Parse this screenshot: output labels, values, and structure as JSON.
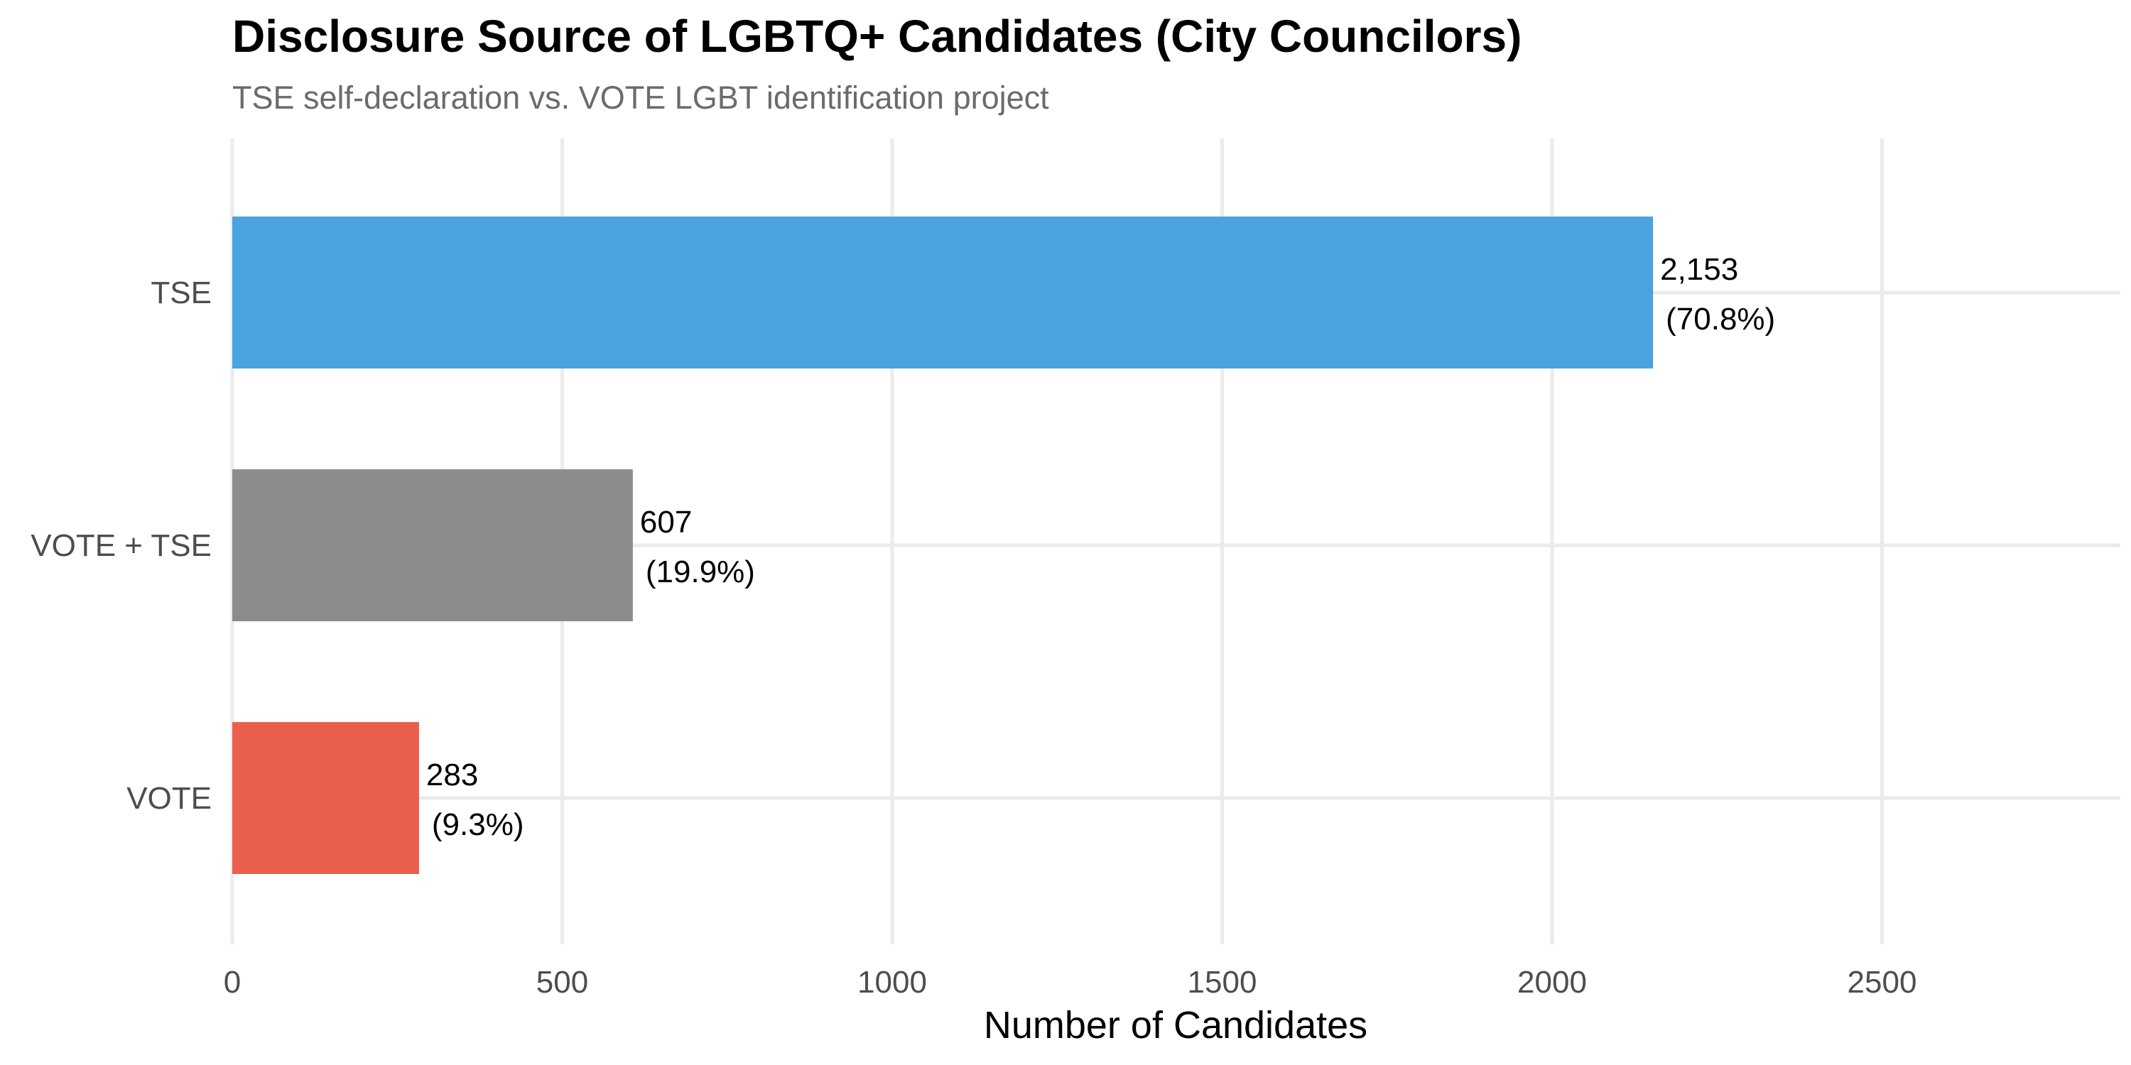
{
  "chart_data": {
    "type": "bar",
    "orientation": "horizontal",
    "title": "Disclosure Source of LGBTQ+ Candidates (City Councilors)",
    "subtitle": "TSE self-declaration vs. VOTE LGBT identification project",
    "xlabel": "Number of Candidates",
    "ylabel": "",
    "xlim": [
      0,
      2700
    ],
    "x_ticks": [
      0,
      500,
      1000,
      1500,
      2000,
      2500
    ],
    "grid": true,
    "legend": "none",
    "categories": [
      "TSE",
      "VOTE + TSE",
      "VOTE"
    ],
    "values": [
      2153,
      607,
      283
    ],
    "value_labels": [
      "2,153",
      "607",
      "283"
    ],
    "percent_labels": [
      "(70.8%)",
      "(19.9%)",
      "(9.3%)"
    ],
    "colors": [
      "#4aa2de",
      "#8c8c8c",
      "#ea5e4e"
    ]
  }
}
